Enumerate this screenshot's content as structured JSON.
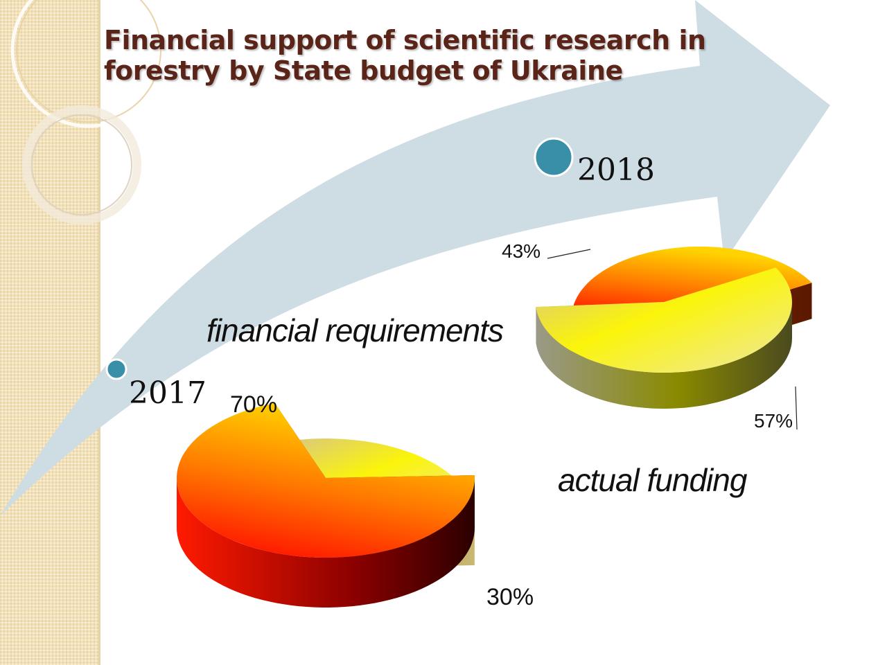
{
  "title": {
    "line1": "Financial support of scientific research in",
    "line2": "forestry by State budget of Ukraine"
  },
  "colors": {
    "title": "#5a2418",
    "arrow": "#cedce3",
    "timeline_dot": "#3a8fa8",
    "financial_requirements": "#f21a00",
    "actual_funding": "#f5f000"
  },
  "chart_data": [
    {
      "type": "pie",
      "style": "3d exploded",
      "year": "2017",
      "slices": [
        {
          "name": "financial requirements",
          "value": 70,
          "label": "70%"
        },
        {
          "name": "actual funding",
          "value": 30,
          "label": "30%"
        }
      ]
    },
    {
      "type": "pie",
      "style": "3d exploded",
      "year": "2018",
      "slices": [
        {
          "name": "financial requirements",
          "value": 43,
          "label": "43%"
        },
        {
          "name": "actual funding",
          "value": 57,
          "label": "57%"
        }
      ]
    }
  ],
  "timeline": {
    "start_year": "2017",
    "end_year": "2018"
  },
  "legend_labels": {
    "requirements": "financial requirements",
    "funding": "actual funding"
  }
}
